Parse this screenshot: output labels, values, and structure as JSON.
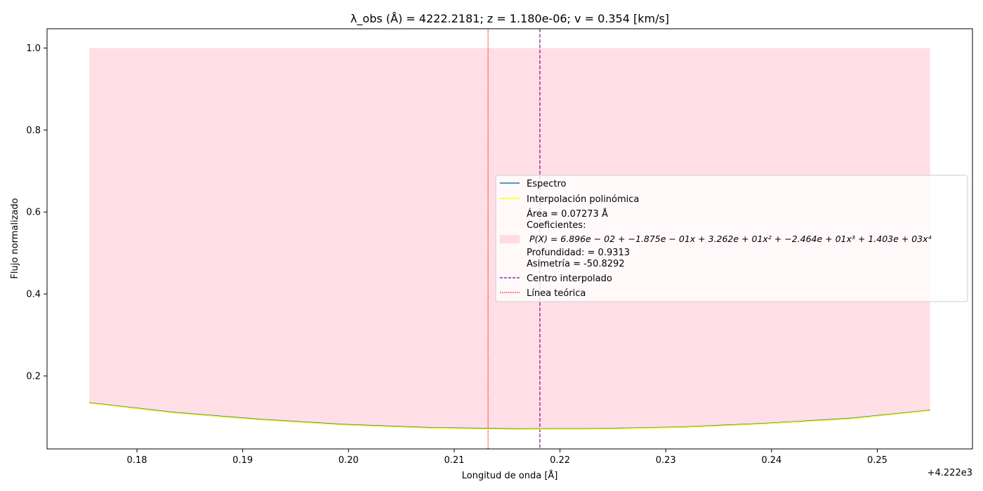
{
  "chart_data": {
    "type": "line",
    "title": "λ_obs (Å) = 4222.2181; z = 1.180e-06; v = 0.354 [km/s]",
    "xlabel": "Longitud de onda [Å]",
    "ylabel": "Flujo normalizado",
    "x_offset_text": "+4.222e3",
    "xlim": [
      4222.1715,
      4222.259
    ],
    "ylim": [
      0.022,
      1.047
    ],
    "xticks": [
      4222.18,
      4222.19,
      4222.2,
      4222.21,
      4222.22,
      4222.23,
      4222.24,
      4222.25
    ],
    "xtick_labels": [
      "0.18",
      "0.19",
      "0.20",
      "0.21",
      "0.22",
      "0.23",
      "0.24",
      "0.25"
    ],
    "yticks": [
      0.2,
      0.4,
      0.6,
      0.8,
      1.0
    ],
    "ytick_labels": [
      "0.2",
      "0.4",
      "0.6",
      "0.8",
      "1.0"
    ],
    "grid": false,
    "legend_position": "center-right",
    "series": [
      {
        "name": "Espectro",
        "color": "#1f77b4",
        "x": [
          4222.1755,
          4222.1835,
          4222.1915,
          4222.1995,
          4222.2075,
          4222.2155,
          4222.2235,
          4222.2315,
          4222.2395,
          4222.2475,
          4222.255
        ],
        "y": [
          0.1345,
          0.1108,
          0.0942,
          0.0815,
          0.0738,
          0.0708,
          0.0712,
          0.0752,
          0.0842,
          0.0965,
          0.1163
        ]
      },
      {
        "name": "Interpolación polinómica",
        "color": "#ffff00",
        "x": [
          4222.1755,
          4222.1835,
          4222.1915,
          4222.1995,
          4222.2075,
          4222.2155,
          4222.2235,
          4222.2315,
          4222.2395,
          4222.2475,
          4222.255
        ],
        "y": [
          0.1335,
          0.1098,
          0.0932,
          0.0805,
          0.0728,
          0.0698,
          0.0702,
          0.0742,
          0.0832,
          0.0955,
          0.1153
        ]
      }
    ],
    "fill": {
      "color": "#ffc0cb",
      "opacity": 0.5,
      "x_start": 4222.1755,
      "x_end": 4222.255,
      "y_top": 1.0
    },
    "vlines": [
      {
        "name": "Centro interpolado",
        "x": 4222.2181,
        "color": "#8000a0",
        "style": "dashed"
      },
      {
        "name": "Línea teórica",
        "x": 4222.2132,
        "color": "#ff0000",
        "style": "dotted"
      }
    ],
    "legend": {
      "entries": [
        {
          "label": "Espectro",
          "kind": "line",
          "color": "#1f77b4"
        },
        {
          "label": "Interpolación polinómica",
          "kind": "line",
          "color": "#ffff00"
        },
        {
          "label": "Área = 0.07273 Å",
          "kind": "fill-text",
          "color": "#ffc0cb"
        },
        {
          "label": "Coeficientes:",
          "kind": "fill-text"
        },
        {
          "label": "P(X) = 6.896e − 02 + −1.875e − 01x + 3.262e + 01x² + −2.464e + 01x³ + 1.403e + 03x⁴",
          "kind": "fill-text"
        },
        {
          "label": "Profundidad: = 0.9313",
          "kind": "fill-text"
        },
        {
          "label": "Asimetría = -50.8292",
          "kind": "fill-text"
        },
        {
          "label": "Centro interpolado",
          "kind": "dashed",
          "color": "#8000a0"
        },
        {
          "label": "Línea teórica",
          "kind": "dotted",
          "color": "#ff0000"
        }
      ]
    }
  }
}
